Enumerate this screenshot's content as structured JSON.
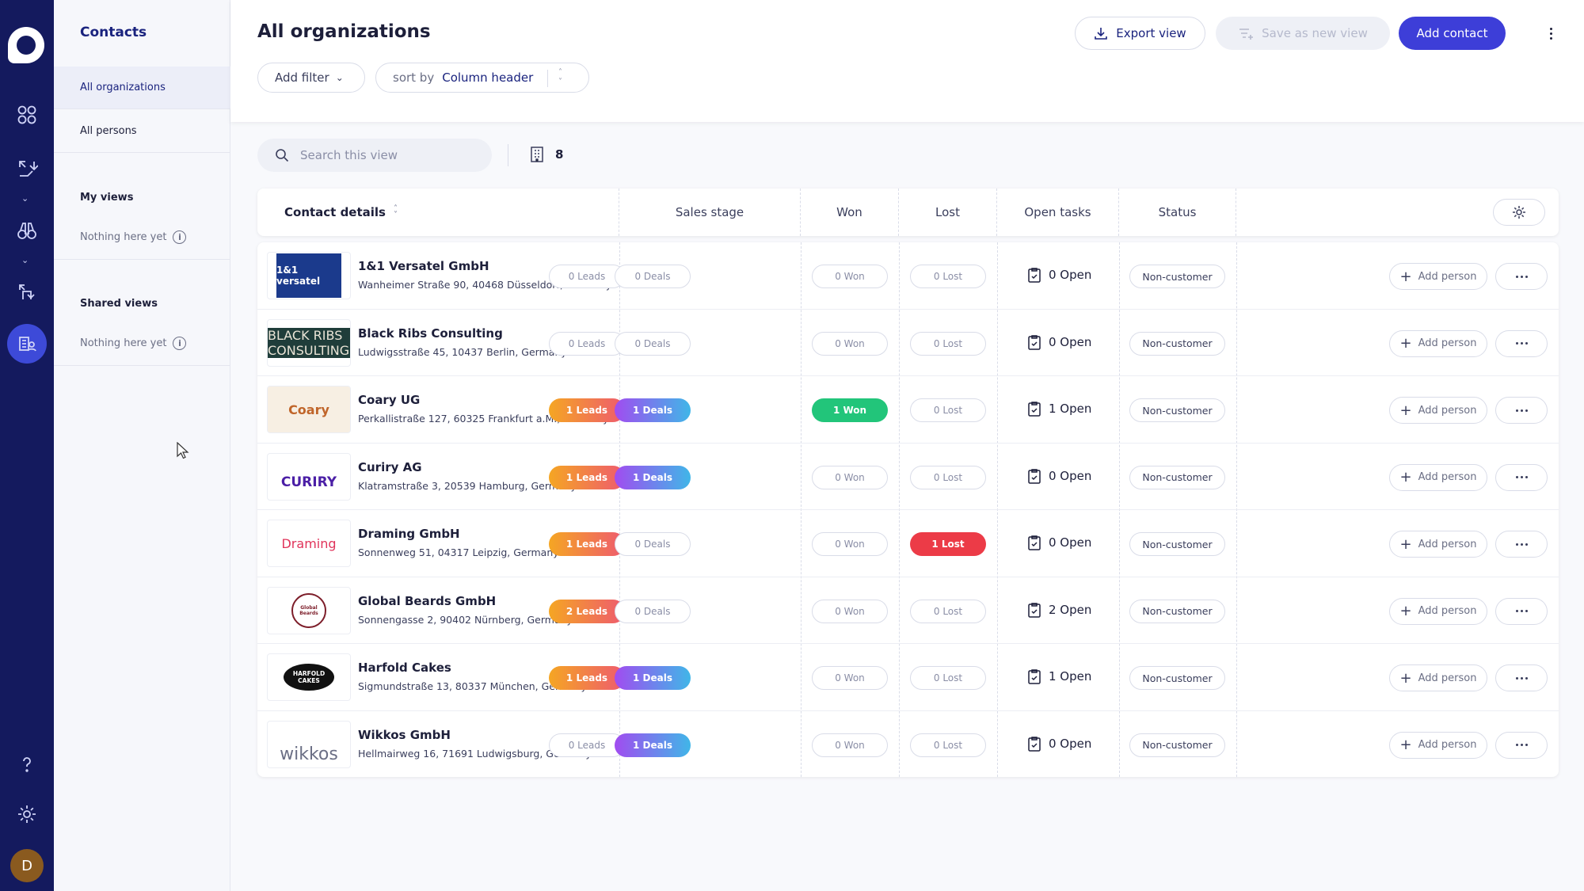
{
  "sidebar": {
    "title": "Contacts",
    "items": [
      {
        "label": "All organizations"
      },
      {
        "label": "All persons"
      }
    ],
    "my_views": {
      "title": "My views",
      "empty": "Nothing here yet"
    },
    "shared_views": {
      "title": "Shared views",
      "empty": "Nothing here yet"
    },
    "avatar_initial": "D"
  },
  "header": {
    "title": "All organizations",
    "add_filter": "Add filter",
    "sort_prefix": "sort by",
    "sort_value": "Column header",
    "export_label": "Export view",
    "save_view_label": "Save as new view",
    "add_contact_label": "Add contact"
  },
  "toolbar": {
    "search_placeholder": "Search this view",
    "count": "8"
  },
  "columns": {
    "contact": "Contact details",
    "sales_stage": "Sales stage",
    "won": "Won",
    "lost": "Lost",
    "open_tasks": "Open tasks",
    "status": "Status"
  },
  "row_action_label": "Add person",
  "rows": [
    {
      "name": "1&1 Versatel GmbH",
      "address": "Wanheimer Straße 90, 40468 Düsseldorf, Germany",
      "logo_text": "1&1 versatel",
      "logo": "versatel",
      "leads": "0 Leads",
      "deals": "0 Deals",
      "won": "0 Won",
      "lost": "0 Lost",
      "open": "0 Open",
      "status": "Non-customer",
      "leads_active": false,
      "deals_active": false,
      "won_active": false,
      "lost_active": false
    },
    {
      "name": "Black Ribs Consulting",
      "address": "Ludwigsstraße 45, 10437 Berlin, Germany",
      "logo_text": "BLACK RIBS CONSULTING",
      "logo": "blackribs",
      "leads": "0 Leads",
      "deals": "0 Deals",
      "won": "0 Won",
      "lost": "0 Lost",
      "open": "0 Open",
      "status": "Non-customer",
      "leads_active": false,
      "deals_active": false,
      "won_active": false,
      "lost_active": false
    },
    {
      "name": "Coary UG",
      "address": "Perkallistraße 127, 60325 Frankfurt a.M., Germany",
      "logo_text": "Coary",
      "logo": "coary",
      "leads": "1 Leads",
      "deals": "1 Deals",
      "won": "1 Won",
      "lost": "0 Lost",
      "open": "1 Open",
      "status": "Non-customer",
      "leads_active": true,
      "deals_active": true,
      "won_active": true,
      "lost_active": false
    },
    {
      "name": "Curiry AG",
      "address": "Klatramstraße 3, 20539 Hamburg, Germany",
      "logo_text": "CURIRY",
      "logo": "curiry",
      "leads": "1 Leads",
      "deals": "1 Deals",
      "won": "0 Won",
      "lost": "0 Lost",
      "open": "0 Open",
      "status": "Non-customer",
      "leads_active": true,
      "deals_active": true,
      "won_active": false,
      "lost_active": false
    },
    {
      "name": "Draming GmbH",
      "address": "Sonnenweg 51, 04317 Leipzig, Germany",
      "logo_text": "Draming",
      "logo": "draming",
      "leads": "1 Leads",
      "deals": "0 Deals",
      "won": "0 Won",
      "lost": "1 Lost",
      "open": "0 Open",
      "status": "Non-customer",
      "leads_active": true,
      "deals_active": false,
      "won_active": false,
      "lost_active": true
    },
    {
      "name": "Global Beards GmbH",
      "address": "Sonnengasse 2, 90402 Nürnberg, Germany",
      "logo_text": "Global Beards",
      "logo": "beards",
      "leads": "2 Leads",
      "deals": "0 Deals",
      "won": "0 Won",
      "lost": "0 Lost",
      "open": "2 Open",
      "status": "Non-customer",
      "leads_active": true,
      "deals_active": false,
      "won_active": false,
      "lost_active": false
    },
    {
      "name": "Harfold Cakes",
      "address": "Sigmundstraße 13, 80337 München, Germany",
      "logo_text": "HARFOLD CAKES",
      "logo": "harfold",
      "leads": "1 Leads",
      "deals": "1 Deals",
      "won": "0 Won",
      "lost": "0 Lost",
      "open": "1 Open",
      "status": "Non-customer",
      "leads_active": true,
      "deals_active": true,
      "won_active": false,
      "lost_active": false
    },
    {
      "name": "Wikkos GmbH",
      "address": "Hellmairweg 16, 71691 Ludwigsburg, Germany",
      "logo_text": "wikkos",
      "logo": "wikkos",
      "leads": "0 Leads",
      "deals": "1 Deals",
      "won": "0 Won",
      "lost": "0 Lost",
      "open": "0 Open",
      "status": "Non-customer",
      "leads_active": false,
      "deals_active": true,
      "won_active": false,
      "lost_active": false
    }
  ],
  "colors": {
    "rail": "#141a5e",
    "primary": "#3d3ed8",
    "won": "#22c57a",
    "lost": "#ec3b47"
  }
}
